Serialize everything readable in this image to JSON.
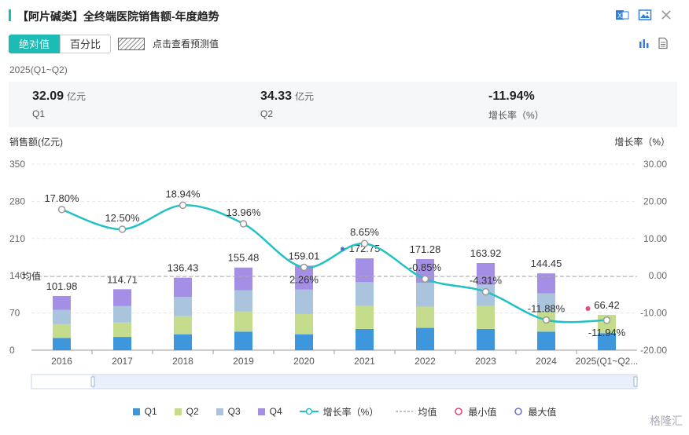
{
  "header": {
    "title": "【阿片碱类】全终端医院销售额-年度趋势"
  },
  "tabs": [
    {
      "label": "绝对值"
    },
    {
      "label": "百分比"
    }
  ],
  "forecast_label": "点击查看预测值",
  "period": "2025(Q1~Q2)",
  "summary": [
    {
      "value": "32.09",
      "unit": "亿元",
      "label": "Q1"
    },
    {
      "value": "34.33",
      "unit": "亿元",
      "label": "Q2"
    },
    {
      "value": "-11.94%",
      "unit": "",
      "label": "增长率（%）"
    }
  ],
  "legend": {
    "q1": "Q1",
    "q2": "Q2",
    "q3": "Q3",
    "q4": "Q4",
    "growth": "增长率（%）",
    "avg": "均值",
    "min": "最小值",
    "max": "最大值"
  },
  "watermark": "格隆汇",
  "colors": {
    "accent": "#1cbbb4",
    "q1": "#3e96dd",
    "q2": "#c5dc8c",
    "q3": "#a9c4dc",
    "q4": "#a48ee6",
    "line": "#22c1c3",
    "min": "#e8487a",
    "max": "#6a78c7"
  },
  "chart_data": {
    "type": "bar",
    "ylabel": "销售额(亿元)",
    "y2label": "增长率（%）",
    "ylim": [
      0,
      350
    ],
    "y2lim": [
      -20,
      30
    ],
    "yticks": [
      "0",
      "70",
      "140",
      "210",
      "280",
      "350"
    ],
    "y2ticks": [
      "-20.00",
      "-10.00",
      "0.00",
      "10.00",
      "20.00",
      "30.00"
    ],
    "avg_label": "均值",
    "categories": [
      "2016",
      "2017",
      "2018",
      "2019",
      "2020",
      "2021",
      "2022",
      "2023",
      "2024",
      "2025(Q1~Q2..."
    ],
    "series": [
      {
        "name": "Q1",
        "values": [
          23,
          25,
          30,
          35,
          30,
          40,
          42,
          40,
          35,
          32.09
        ]
      },
      {
        "name": "Q2",
        "values": [
          26,
          27,
          34,
          38,
          38,
          43,
          40,
          43,
          36,
          34.33
        ]
      },
      {
        "name": "Q3",
        "values": [
          27,
          31,
          36,
          40,
          46,
          45,
          45,
          40,
          36,
          0
        ]
      },
      {
        "name": "Q4",
        "values": [
          25.98,
          31.71,
          36.43,
          42.48,
          45.01,
          44.75,
          44.28,
          40.92,
          37.45,
          0
        ]
      }
    ],
    "totals": [
      "101.98",
      "114.71",
      "136.43",
      "155.48",
      "159.01",
      "172.75",
      "171.28",
      "163.92",
      "144.45",
      "66.42"
    ],
    "growth": {
      "name": "增长率（%）",
      "values": [
        17.8,
        12.5,
        18.94,
        13.96,
        2.26,
        8.65,
        -0.85,
        -4.31,
        -11.88,
        -11.94
      ],
      "labels": [
        "17.80%",
        "12.50%",
        "18.94%",
        "13.96%",
        "2.26%",
        "8.65%",
        "-0.85%",
        "-4.31%",
        "-11.88%",
        "-11.94%"
      ]
    },
    "average": 138.7,
    "min_index": 9,
    "max_index": 5
  }
}
